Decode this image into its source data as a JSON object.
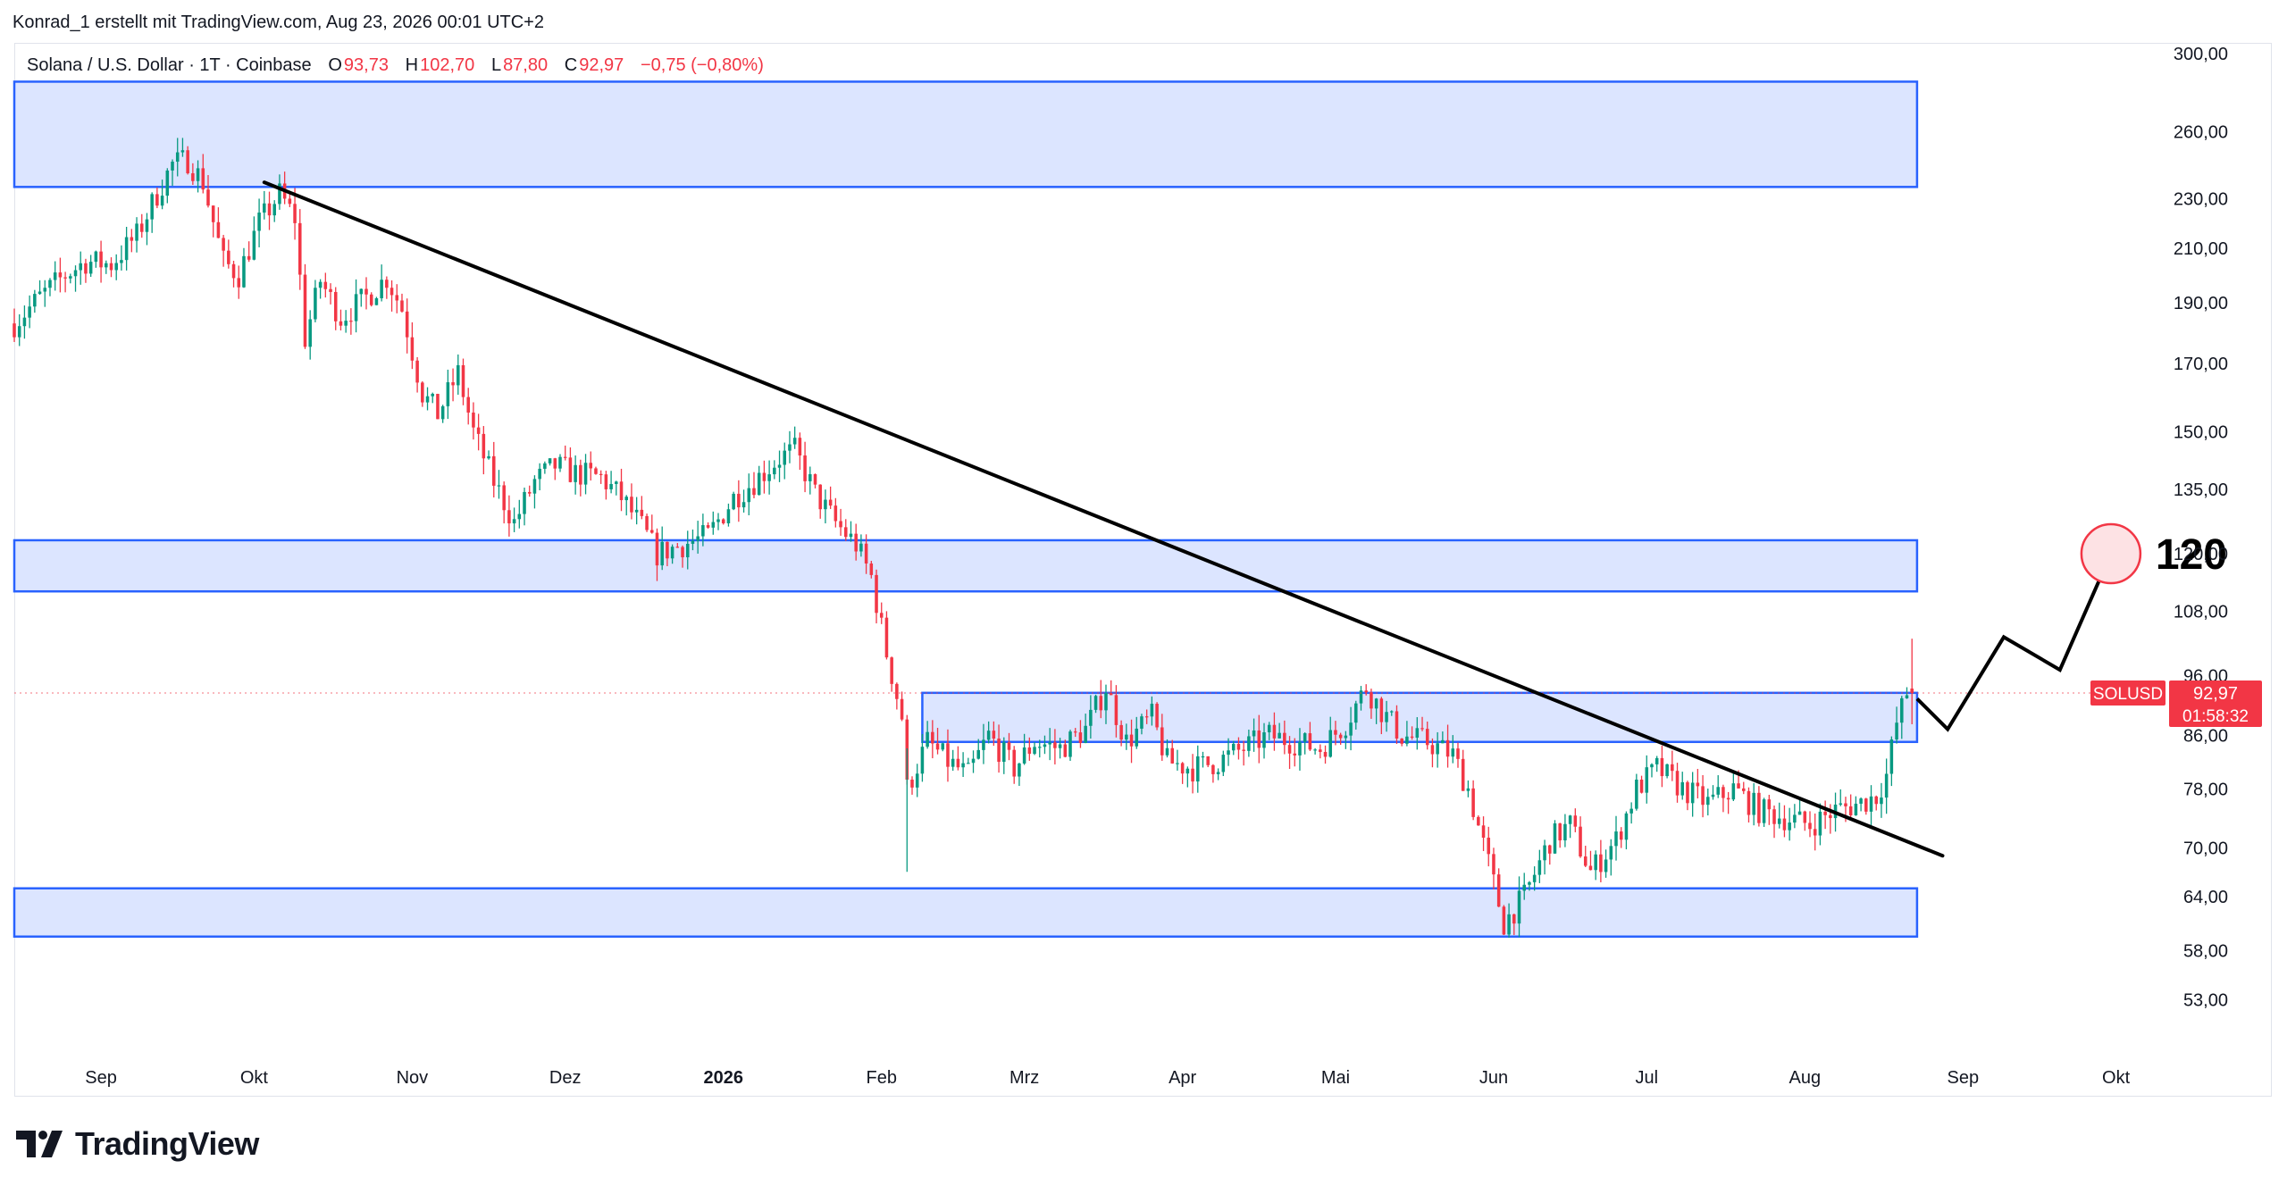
{
  "topbar": {
    "credit": "Konrad_1 erstellt mit TradingView.com, Aug 23, 2026 00:01 UTC+2"
  },
  "legend": {
    "symbol": "Solana / U.S. Dollar · 1T · Coinbase",
    "o_label": "O",
    "o_value": "93,73",
    "h_label": "H",
    "h_value": "102,70",
    "l_label": "L",
    "l_value": "87,80",
    "c_label": "C",
    "c_value": "92,97",
    "change": "−0,75 (−0,80%)"
  },
  "price_tag": {
    "symbol": "SOLUSD",
    "price": "92,97",
    "countdown": "01:58:32"
  },
  "target_label": "120",
  "brand": {
    "name": "TradingView",
    "logo_icon": "tradingview-logo-icon"
  },
  "colors": {
    "up": "#089981",
    "down": "#f23645",
    "zone_fill": "#d6e0ff",
    "zone_border": "#2962ff",
    "trendline": "#000000",
    "target_circle": "#f23645"
  },
  "chart_data": {
    "type": "candlestick",
    "symbol": "SOLUSD",
    "timeframe": "1T",
    "exchange": "Coinbase",
    "y_scale": "log",
    "ylim": [
      48,
      305
    ],
    "y_ticks": [
      {
        "value": 300,
        "label": "300,00"
      },
      {
        "value": 260,
        "label": "260,00"
      },
      {
        "value": 230,
        "label": "230,00"
      },
      {
        "value": 210,
        "label": "210,00"
      },
      {
        "value": 190,
        "label": "190,00"
      },
      {
        "value": 170,
        "label": "170,00"
      },
      {
        "value": 150,
        "label": "150,00"
      },
      {
        "value": 135,
        "label": "135,00"
      },
      {
        "value": 120,
        "label": "120,00"
      },
      {
        "value": 108,
        "label": "108,00"
      },
      {
        "value": 96,
        "label": "96,00"
      },
      {
        "value": 86,
        "label": "86,00"
      },
      {
        "value": 78,
        "label": "78,00"
      },
      {
        "value": 70,
        "label": "70,00"
      },
      {
        "value": 64,
        "label": "64,00"
      },
      {
        "value": 58,
        "label": "58,00"
      },
      {
        "value": 53,
        "label": "53,00"
      }
    ],
    "x_range": [
      "2025-08-15",
      "2026-10-10"
    ],
    "x_ticks": [
      {
        "date": "2025-09-01",
        "label": "Sep",
        "bold": false
      },
      {
        "date": "2025-10-01",
        "label": "Okt",
        "bold": false
      },
      {
        "date": "2025-11-01",
        "label": "Nov",
        "bold": false
      },
      {
        "date": "2025-12-01",
        "label": "Dez",
        "bold": false
      },
      {
        "date": "2026-01-01",
        "label": "2026",
        "bold": true
      },
      {
        "date": "2026-02-01",
        "label": "Feb",
        "bold": false
      },
      {
        "date": "2026-03-01",
        "label": "Mrz",
        "bold": false
      },
      {
        "date": "2026-04-01",
        "label": "Apr",
        "bold": false
      },
      {
        "date": "2026-05-01",
        "label": "Mai",
        "bold": false
      },
      {
        "date": "2026-06-01",
        "label": "Jun",
        "bold": false
      },
      {
        "date": "2026-07-01",
        "label": "Jul",
        "bold": false
      },
      {
        "date": "2026-08-01",
        "label": "Aug",
        "bold": false
      },
      {
        "date": "2026-09-01",
        "label": "Sep",
        "bold": false
      },
      {
        "date": "2026-10-01",
        "label": "Okt",
        "bold": false
      }
    ],
    "close_path": [
      [
        "2025-08-15",
        183
      ],
      [
        "2025-08-20",
        192
      ],
      [
        "2025-08-25",
        200
      ],
      [
        "2025-08-29",
        205
      ],
      [
        "2025-09-03",
        204
      ],
      [
        "2025-09-08",
        215
      ],
      [
        "2025-09-12",
        232
      ],
      [
        "2025-09-15",
        245
      ],
      [
        "2025-09-18",
        247
      ],
      [
        "2025-09-21",
        237
      ],
      [
        "2025-09-25",
        205
      ],
      [
        "2025-09-28",
        200
      ],
      [
        "2025-10-02",
        220
      ],
      [
        "2025-10-06",
        232
      ],
      [
        "2025-10-09",
        222
      ],
      [
        "2025-10-11",
        178
      ],
      [
        "2025-10-14",
        198
      ],
      [
        "2025-10-18",
        185
      ],
      [
        "2025-10-23",
        192
      ],
      [
        "2025-10-27",
        199
      ],
      [
        "2025-10-30",
        188
      ],
      [
        "2025-11-03",
        161
      ],
      [
        "2025-11-06",
        155
      ],
      [
        "2025-11-10",
        167
      ],
      [
        "2025-11-13",
        150
      ],
      [
        "2025-11-17",
        137
      ],
      [
        "2025-11-21",
        127
      ],
      [
        "2025-11-25",
        137
      ],
      [
        "2025-11-29",
        141
      ],
      [
        "2025-12-03",
        139
      ],
      [
        "2025-12-08",
        138
      ],
      [
        "2025-12-12",
        133
      ],
      [
        "2025-12-16",
        126
      ],
      [
        "2025-12-19",
        120
      ],
      [
        "2025-12-24",
        122
      ],
      [
        "2025-12-29",
        124
      ],
      [
        "2026-01-03",
        133
      ],
      [
        "2026-01-07",
        137
      ],
      [
        "2026-01-12",
        143
      ],
      [
        "2026-01-15",
        145
      ],
      [
        "2026-01-19",
        134
      ],
      [
        "2026-01-23",
        127
      ],
      [
        "2026-01-27",
        122
      ],
      [
        "2026-01-30",
        115
      ],
      [
        "2026-02-02",
        100
      ],
      [
        "2026-02-05",
        89
      ],
      [
        "2026-02-06",
        78
      ],
      [
        "2026-02-10",
        85
      ],
      [
        "2026-02-14",
        82
      ],
      [
        "2026-02-18",
        80
      ],
      [
        "2026-02-22",
        86
      ],
      [
        "2026-02-27",
        81
      ],
      [
        "2026-03-03",
        85
      ],
      [
        "2026-03-08",
        84
      ],
      [
        "2026-03-13",
        87
      ],
      [
        "2026-03-17",
        94
      ],
      [
        "2026-03-21",
        85
      ],
      [
        "2026-03-26",
        89
      ],
      [
        "2026-03-29",
        82
      ],
      [
        "2026-04-03",
        81
      ],
      [
        "2026-04-08",
        82
      ],
      [
        "2026-04-13",
        84
      ],
      [
        "2026-04-18",
        86
      ],
      [
        "2026-04-23",
        85
      ],
      [
        "2026-04-28",
        84
      ],
      [
        "2026-05-03",
        88
      ],
      [
        "2026-05-07",
        94
      ],
      [
        "2026-05-10",
        90
      ],
      [
        "2026-05-14",
        86
      ],
      [
        "2026-05-19",
        85
      ],
      [
        "2026-05-24",
        83
      ],
      [
        "2026-05-27",
        78
      ],
      [
        "2026-05-31",
        68
      ],
      [
        "2026-06-03",
        61
      ],
      [
        "2026-06-07",
        64
      ],
      [
        "2026-06-12",
        71
      ],
      [
        "2026-06-16",
        73
      ],
      [
        "2026-06-20",
        67
      ],
      [
        "2026-06-25",
        71
      ],
      [
        "2026-06-29",
        78
      ],
      [
        "2026-07-03",
        81
      ],
      [
        "2026-07-08",
        78
      ],
      [
        "2026-07-13",
        76
      ],
      [
        "2026-07-18",
        78
      ],
      [
        "2026-07-23",
        75
      ],
      [
        "2026-07-28",
        74
      ],
      [
        "2026-08-02",
        73
      ],
      [
        "2026-08-07",
        75
      ],
      [
        "2026-08-12",
        76
      ],
      [
        "2026-08-15",
        77
      ],
      [
        "2026-08-17",
        80
      ],
      [
        "2026-08-19",
        88
      ],
      [
        "2026-08-21",
        93
      ],
      [
        "2026-08-22",
        92.97
      ]
    ],
    "zones": [
      {
        "from": "2025-08-15",
        "to": "2026-08-23",
        "low": 235,
        "high": 285
      },
      {
        "from": "2025-08-15",
        "to": "2026-08-23",
        "low": 112,
        "high": 123
      },
      {
        "from": "2026-02-09",
        "to": "2026-08-23",
        "low": 85,
        "high": 93
      },
      {
        "from": "2025-08-15",
        "to": "2026-08-23",
        "low": 59.5,
        "high": 65
      }
    ],
    "trendline": {
      "from": [
        "2025-10-03",
        237
      ],
      "to": [
        "2026-08-28",
        69
      ]
    },
    "projection_path": [
      [
        "2026-08-23",
        92
      ],
      [
        "2026-08-29",
        87
      ],
      [
        "2026-09-09",
        103
      ],
      [
        "2026-09-20",
        97
      ],
      [
        "2026-09-30",
        120
      ]
    ],
    "target": {
      "date": "2026-09-30",
      "value": 120
    },
    "last_price": 92.97
  }
}
